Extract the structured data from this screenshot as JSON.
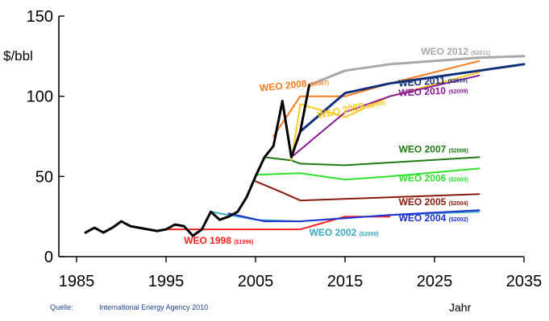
{
  "chart_data": {
    "type": "line",
    "ylabel": "$/bbl",
    "xlabel": "Jahr",
    "xlim": [
      1985,
      2035
    ],
    "ylim": [
      0,
      150
    ],
    "x_ticks": [
      1985,
      1995,
      2005,
      2015,
      2025,
      2035
    ],
    "y_ticks": [
      0,
      50,
      100,
      150
    ],
    "grid": false,
    "series": [
      {
        "name": "",
        "color": "#000000",
        "width": 3,
        "points": [
          [
            1986,
            15
          ],
          [
            1987,
            18
          ],
          [
            1988,
            15
          ],
          [
            1989,
            18
          ],
          [
            1990,
            22
          ],
          [
            1991,
            19
          ],
          [
            1992,
            18
          ],
          [
            1993,
            17
          ],
          [
            1994,
            16
          ],
          [
            1995,
            17
          ],
          [
            1996,
            20
          ],
          [
            1997,
            19
          ],
          [
            1998,
            13
          ],
          [
            1999,
            17
          ],
          [
            2000,
            28
          ],
          [
            2001,
            23
          ],
          [
            2002,
            25
          ],
          [
            2003,
            28
          ],
          [
            2004,
            37
          ],
          [
            2005,
            50
          ],
          [
            2006,
            62
          ],
          [
            2007,
            69
          ],
          [
            2008,
            97
          ],
          [
            2009,
            62
          ],
          [
            2010,
            78
          ],
          [
            2011,
            107
          ]
        ]
      },
      {
        "name": "WEO 1998",
        "unit": "($1996)",
        "color": "#ff2020",
        "width": 2,
        "points": [
          [
            1995,
            17
          ],
          [
            2010,
            17
          ],
          [
            2015,
            25
          ],
          [
            2020,
            25
          ]
        ]
      },
      {
        "name": "WEO 2002",
        "unit": "($2000)",
        "color": "#3aa8c0",
        "width": 2,
        "points": [
          [
            2000,
            28
          ],
          [
            2005,
            23
          ],
          [
            2010,
            22
          ],
          [
            2020,
            26
          ],
          [
            2030,
            28
          ]
        ]
      },
      {
        "name": "WEO 2004",
        "unit": "($2002)",
        "color": "#2030d0",
        "width": 2,
        "points": [
          [
            2002,
            27
          ],
          [
            2006,
            22
          ],
          [
            2010,
            22
          ],
          [
            2020,
            26
          ],
          [
            2030,
            29
          ]
        ]
      },
      {
        "name": "WEO 2005",
        "unit": "($2004)",
        "color": "#8b1a0e",
        "width": 2,
        "points": [
          [
            2005,
            47
          ],
          [
            2008,
            40
          ],
          [
            2010,
            35
          ],
          [
            2020,
            37
          ],
          [
            2030,
            39
          ]
        ]
      },
      {
        "name": "WEO 2006",
        "unit": "($2005)",
        "color": "#2fe02f",
        "width": 2,
        "points": [
          [
            2005,
            51
          ],
          [
            2010,
            52
          ],
          [
            2015,
            48
          ],
          [
            2020,
            50
          ],
          [
            2030,
            55
          ]
        ]
      },
      {
        "name": "WEO 2007",
        "unit": "($2006)",
        "color": "#1e7a14",
        "width": 2,
        "points": [
          [
            2006,
            62
          ],
          [
            2009,
            60
          ],
          [
            2010,
            58
          ],
          [
            2015,
            57
          ],
          [
            2030,
            62
          ]
        ]
      },
      {
        "name": "WEO 2008",
        "unit": "($2007)",
        "color": "#ff7a1a",
        "width": 2,
        "points": [
          [
            2007,
            75
          ],
          [
            2010,
            100
          ],
          [
            2015,
            100
          ],
          [
            2020,
            108
          ],
          [
            2030,
            122
          ]
        ]
      },
      {
        "name": "WEO 2009",
        "unit": "($2008)",
        "color": "#ffc820",
        "width": 2,
        "points": [
          [
            2009,
            60
          ],
          [
            2010,
            95
          ],
          [
            2015,
            87
          ],
          [
            2020,
            100
          ],
          [
            2030,
            115
          ]
        ]
      },
      {
        "name": "WEO 2010",
        "unit": "($2009)",
        "color": "#8a1a96",
        "width": 2,
        "points": [
          [
            2009,
            62
          ],
          [
            2015,
            90
          ],
          [
            2020,
            100
          ],
          [
            2030,
            113
          ]
        ]
      },
      {
        "name": "WEO 2011",
        "unit": "($2010)",
        "color": "#12307a",
        "width": 3,
        "points": [
          [
            2010,
            78
          ],
          [
            2015,
            102
          ],
          [
            2020,
            108
          ],
          [
            2030,
            116
          ],
          [
            2035,
            120
          ]
        ]
      },
      {
        "name": "WEO 2012",
        "unit": "($2011)",
        "color": "#a8a8a8",
        "width": 3,
        "points": [
          [
            2011,
            107
          ],
          [
            2015,
            116
          ],
          [
            2020,
            120
          ],
          [
            2030,
            124
          ],
          [
            2035,
            125
          ]
        ]
      }
    ]
  },
  "source": {
    "label": "Quelle:",
    "value": "International Energy Agency 2010"
  }
}
